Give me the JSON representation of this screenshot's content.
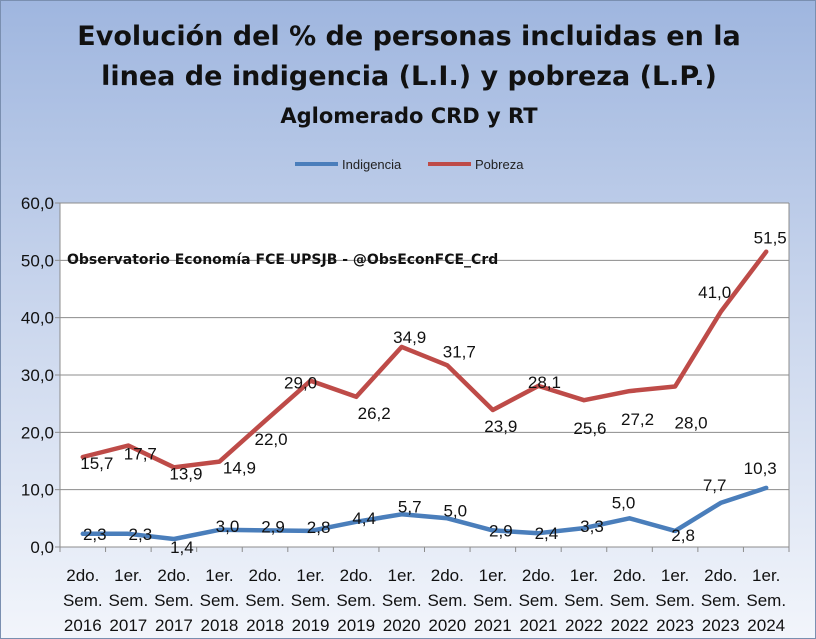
{
  "chart_data": {
    "type": "line",
    "title": "Evolución del % de personas incluidas en la linea de indigencia (L.I.) y pobreza (L.P.)",
    "title_line1": "Evolución del % de personas incluidas en la",
    "title_line2": "linea de indigencia (L.I.) y pobreza (L.P.)",
    "subtitle": "Aglomerado CRD y RT",
    "annotation": "Observatorio Economía FCE UPSJB - @ObsEconFCE_Crd",
    "xlabel": "",
    "ylabel": "",
    "ylim": [
      0,
      60
    ],
    "yticks": [
      "0,0",
      "10,0",
      "20,0",
      "30,0",
      "40,0",
      "50,0",
      "60,0"
    ],
    "legend_position": "top-center",
    "categories": [
      [
        "2do.",
        "Sem.",
        "2016"
      ],
      [
        "1er.",
        "Sem.",
        "2017"
      ],
      [
        "2do.",
        "Sem.",
        "2017"
      ],
      [
        "1er.",
        "Sem.",
        "2018"
      ],
      [
        "2do.",
        "Sem.",
        "2018"
      ],
      [
        "1er.",
        "Sem.",
        "2019"
      ],
      [
        "2do.",
        "Sem.",
        "2019"
      ],
      [
        "1er.",
        "Sem.",
        "2020"
      ],
      [
        "2do.",
        "Sem.",
        "2020"
      ],
      [
        "1er.",
        "Sem.",
        "2021"
      ],
      [
        "2do.",
        "Sem.",
        "2021"
      ],
      [
        "1er.",
        "Sem.",
        "2022"
      ],
      [
        "2do.",
        "Sem.",
        "2022"
      ],
      [
        "1er.",
        "Sem.",
        "2023"
      ],
      [
        "2do.",
        "Sem.",
        "2023"
      ],
      [
        "1er.",
        "Sem.",
        "2024"
      ]
    ],
    "series": [
      {
        "name": "Indigencia",
        "color": "#4a7ebb",
        "values": [
          2.3,
          2.3,
          1.4,
          3.0,
          2.9,
          2.8,
          4.4,
          5.7,
          5.0,
          2.9,
          2.4,
          3.3,
          5.0,
          2.8,
          7.7,
          10.3
        ],
        "labels": [
          "2,3",
          "2,3",
          "1,4",
          "3,0",
          "2,9",
          "2,8",
          "4,4",
          "5,7",
          "5,0",
          "2,9",
          "2,4",
          "3,3",
          "5,0",
          "2,8",
          "7,7",
          "10,3"
        ]
      },
      {
        "name": "Pobreza",
        "color": "#be4b48",
        "values": [
          15.7,
          17.7,
          13.9,
          14.9,
          22.0,
          29.0,
          26.2,
          34.9,
          31.7,
          23.9,
          28.1,
          25.6,
          27.2,
          28.0,
          41.0,
          51.5
        ],
        "labels": [
          "15,7",
          "17,7",
          "13,9",
          "14,9",
          "22,0",
          "29,0",
          "26,2",
          "34,9",
          "31,7",
          "23,9",
          "28,1",
          "25,6",
          "27,2",
          "28,0",
          "41,0",
          "51,5"
        ]
      }
    ]
  }
}
